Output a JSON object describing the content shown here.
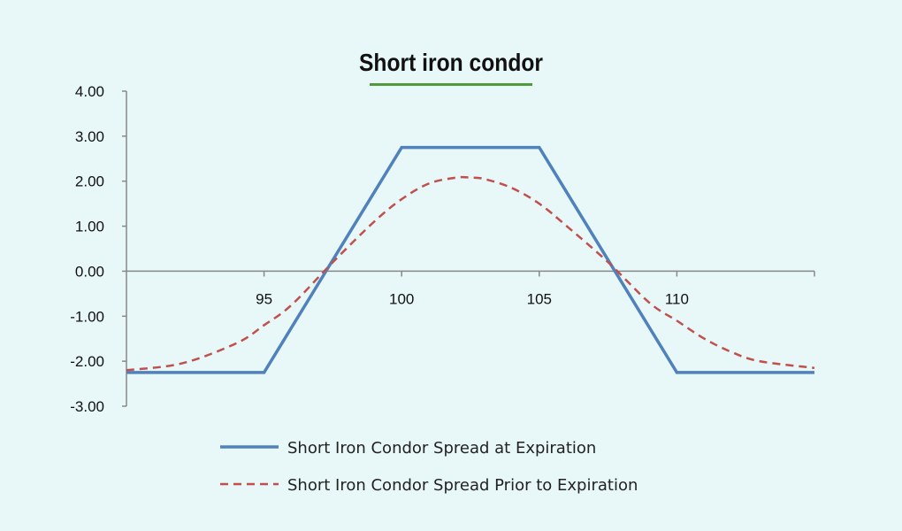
{
  "title": "Short iron condor",
  "colors": {
    "expiration": "#4f81bd",
    "prior": "#c0504d",
    "axis": "#888888",
    "title_underline": "#4f9a3a"
  },
  "chart_data": {
    "type": "line",
    "title": "Short iron condor",
    "xlim": [
      90,
      115
    ],
    "ylim": [
      -3,
      4
    ],
    "y_ticks": [
      "4.00",
      "3.00",
      "2.00",
      "1.00",
      "0.00",
      "-1.00",
      "-2.00",
      "-3.00"
    ],
    "y_tick_values": [
      4,
      3,
      2,
      1,
      0,
      -1,
      -2,
      -3
    ],
    "x_ticks": [
      "95",
      "100",
      "105",
      "110"
    ],
    "x_tick_values": [
      95,
      100,
      105,
      110
    ],
    "legend_position": "bottom",
    "series": [
      {
        "name": "Short Iron Condor Spread at Expiration",
        "style": "solid",
        "color": "#4f81bd",
        "x": [
          90,
          95,
          100,
          105,
          110,
          115
        ],
        "y": [
          -2.25,
          -2.25,
          2.75,
          2.75,
          -2.25,
          -2.25
        ]
      },
      {
        "name": "Short Iron Condor Spread Prior to Expiration",
        "style": "dashed",
        "color": "#c0504d",
        "x": [
          90,
          92,
          94,
          95,
          96,
          97.5,
          99,
          100,
          101,
          102,
          102.5,
          103,
          104,
          105,
          106,
          107.5,
          109,
          110,
          111,
          112,
          113,
          115
        ],
        "y": [
          -2.2,
          -2.05,
          -1.6,
          -1.2,
          -0.75,
          0.2,
          1.1,
          1.6,
          1.95,
          2.08,
          2.08,
          2.05,
          1.85,
          1.5,
          1.0,
          0.2,
          -0.7,
          -1.1,
          -1.5,
          -1.8,
          -2.0,
          -2.15
        ]
      }
    ]
  }
}
